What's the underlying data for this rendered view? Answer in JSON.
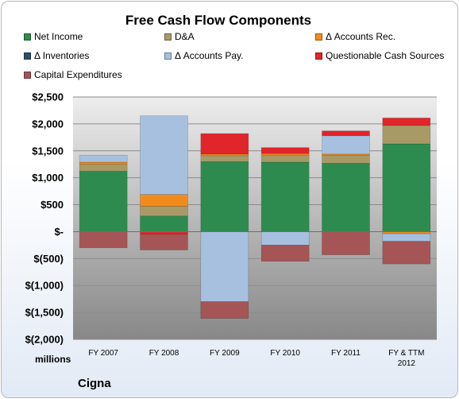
{
  "chart_data": {
    "type": "bar",
    "stacked": true,
    "title": "Free Cash Flow Components",
    "company": "Cigna",
    "units_label": "millions",
    "categories": [
      "FY 2007",
      "FY 2008",
      "FY 2009",
      "FY 2010",
      "FY 2011",
      "FY & TTM 2012"
    ],
    "category_lines": [
      [
        "FY 2007"
      ],
      [
        "FY 2008"
      ],
      [
        "FY 2009"
      ],
      [
        "FY 2010"
      ],
      [
        "FY 2011"
      ],
      [
        "FY & TTM",
        "2012"
      ]
    ],
    "ylim": [
      -2000,
      2500
    ],
    "yticks": [
      2500,
      2000,
      1500,
      1000,
      500,
      0,
      -500,
      -1000,
      -1500,
      -2000
    ],
    "ytick_labels": [
      "$2,500",
      "$2,000",
      "$1,500",
      "$1,000",
      "$500",
      "$-",
      "$(500)",
      "$(1,000)",
      "$(1,500)",
      "$(2,000)"
    ],
    "grid": true,
    "legend_position": "top",
    "series": [
      {
        "name": "Net Income",
        "color": "#2e8b4f",
        "values": [
          1120,
          290,
          1300,
          1290,
          1270,
          1630
        ]
      },
      {
        "name": "D&A",
        "color": "#a89a67",
        "values": [
          130,
          180,
          110,
          130,
          150,
          340
        ]
      },
      {
        "name": "Δ Accounts Rec.",
        "color": "#f28b1e",
        "values": [
          40,
          220,
          30,
          30,
          20,
          -40
        ]
      },
      {
        "name": "Δ Inventories",
        "color": "#2f4d6b",
        "values": [
          0,
          0,
          0,
          0,
          0,
          0
        ]
      },
      {
        "name": "Δ Accounts Pay.",
        "color": "#a7c0e0",
        "values": [
          130,
          1460,
          -1300,
          -250,
          340,
          -140
        ]
      },
      {
        "name": "Questionable Cash Sources",
        "color": "#e0252b",
        "values": [
          0,
          -50,
          380,
          110,
          90,
          140
        ]
      },
      {
        "name": "Capital Expenditures",
        "color": "#a55555",
        "values": [
          -300,
          -290,
          -310,
          -300,
          -430,
          -420
        ]
      }
    ]
  }
}
